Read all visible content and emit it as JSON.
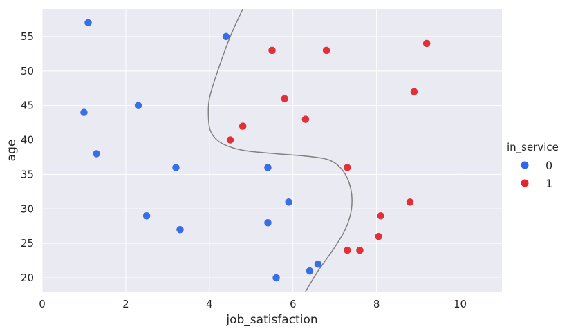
{
  "chart_data": {
    "type": "scatter",
    "xlabel": "job_satisfaction",
    "ylabel": "age",
    "xlim": [
      0,
      11
    ],
    "ylim": [
      18,
      59
    ],
    "x_ticks": [
      0,
      2,
      4,
      6,
      8,
      10
    ],
    "y_ticks": [
      20,
      25,
      30,
      35,
      40,
      45,
      50,
      55
    ],
    "grid": true,
    "legend": {
      "title": "in_service",
      "placement": "right",
      "entries": [
        {
          "label": "0",
          "color": "#2f67e3"
        },
        {
          "label": "1",
          "color": "#e3262c"
        }
      ]
    },
    "series": [
      {
        "name": "0",
        "color": "#2f67e3",
        "points": [
          {
            "x": 1.1,
            "y": 57
          },
          {
            "x": 4.4,
            "y": 55
          },
          {
            "x": 2.3,
            "y": 45
          },
          {
            "x": 1.0,
            "y": 44
          },
          {
            "x": 1.3,
            "y": 38
          },
          {
            "x": 3.2,
            "y": 36
          },
          {
            "x": 5.4,
            "y": 36
          },
          {
            "x": 5.9,
            "y": 31
          },
          {
            "x": 2.5,
            "y": 29
          },
          {
            "x": 5.4,
            "y": 28
          },
          {
            "x": 3.3,
            "y": 27
          },
          {
            "x": 6.6,
            "y": 22
          },
          {
            "x": 6.4,
            "y": 21
          },
          {
            "x": 5.6,
            "y": 20
          }
        ]
      },
      {
        "name": "1",
        "color": "#e3262c",
        "points": [
          {
            "x": 9.2,
            "y": 54
          },
          {
            "x": 5.5,
            "y": 53
          },
          {
            "x": 6.8,
            "y": 53
          },
          {
            "x": 8.9,
            "y": 47
          },
          {
            "x": 5.8,
            "y": 46
          },
          {
            "x": 6.3,
            "y": 43
          },
          {
            "x": 4.8,
            "y": 42
          },
          {
            "x": 4.5,
            "y": 40
          },
          {
            "x": 7.3,
            "y": 36
          },
          {
            "x": 8.8,
            "y": 31
          },
          {
            "x": 8.1,
            "y": 29
          },
          {
            "x": 8.05,
            "y": 26
          },
          {
            "x": 7.3,
            "y": 24
          },
          {
            "x": 7.6,
            "y": 24
          }
        ]
      }
    ],
    "boundary": {
      "color": "#808080",
      "points": [
        {
          "x": 4.8,
          "y": 59
        },
        {
          "x": 4.5,
          "y": 55
        },
        {
          "x": 4.2,
          "y": 50
        },
        {
          "x": 4.0,
          "y": 46
        },
        {
          "x": 3.98,
          "y": 43
        },
        {
          "x": 4.05,
          "y": 41
        },
        {
          "x": 4.3,
          "y": 39.5
        },
        {
          "x": 4.8,
          "y": 38.5
        },
        {
          "x": 5.6,
          "y": 38
        },
        {
          "x": 6.4,
          "y": 37.6
        },
        {
          "x": 6.9,
          "y": 37
        },
        {
          "x": 7.2,
          "y": 35.5
        },
        {
          "x": 7.38,
          "y": 33
        },
        {
          "x": 7.4,
          "y": 30
        },
        {
          "x": 7.25,
          "y": 27
        },
        {
          "x": 6.95,
          "y": 24
        },
        {
          "x": 6.6,
          "y": 21
        },
        {
          "x": 6.3,
          "y": 18
        }
      ]
    }
  }
}
